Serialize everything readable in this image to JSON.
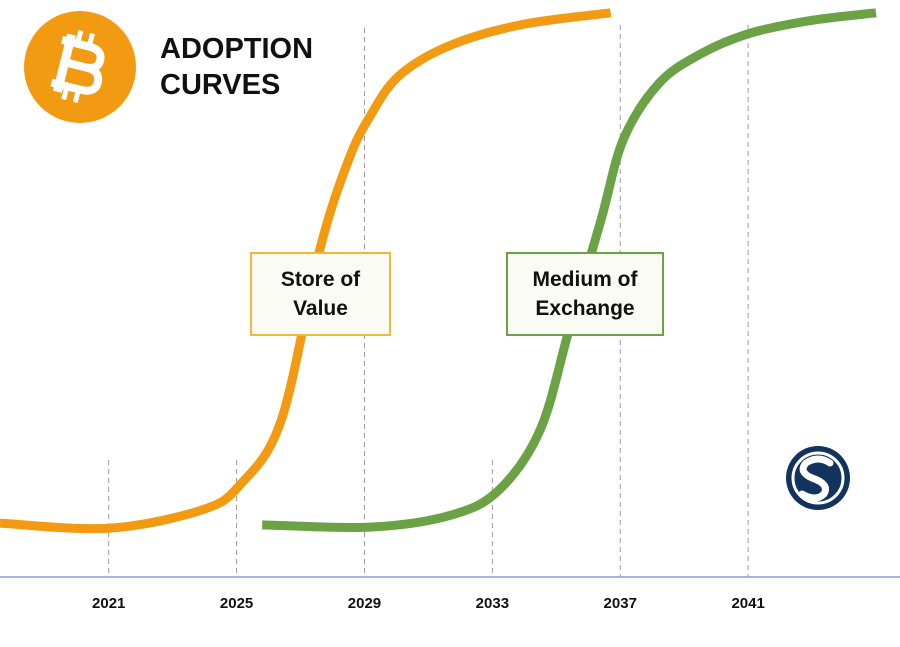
{
  "chart_data": {
    "type": "line",
    "title": "ADOPTION CURVES",
    "xlim": [
      2017.6,
      2045.75
    ],
    "ylim": [
      0,
      100
    ],
    "xticks": [
      2021,
      2025,
      2029,
      2033,
      2037,
      2041
    ],
    "grid": true,
    "series": [
      {
        "name": "Store of Value",
        "color": "#f29b12",
        "x": [
          2017.6,
          2021,
          2023.9,
          2025.1,
          2026.4,
          2027.6,
          2028.5,
          2029.2,
          2030.1,
          2031.7,
          2033.9,
          2036.7
        ],
        "values": [
          9.5,
          8.6,
          11.8,
          16.2,
          27.7,
          57.7,
          73.5,
          81.5,
          88.5,
          93.8,
          97.4,
          99.5
        ]
      },
      {
        "name": "Medium of Exchange",
        "color": "#6aa245",
        "x": [
          2025.8,
          2029.2,
          2031.7,
          2033.2,
          2034.5,
          2035.4,
          2036.4,
          2037.1,
          2038.2,
          2039.5,
          2041,
          2042.9,
          2045.0
        ],
        "values": [
          9.2,
          8.8,
          10.9,
          15.3,
          26,
          43.6,
          63,
          77.2,
          87,
          92.2,
          95.8,
          98.1,
          99.5
        ]
      }
    ]
  }
}
